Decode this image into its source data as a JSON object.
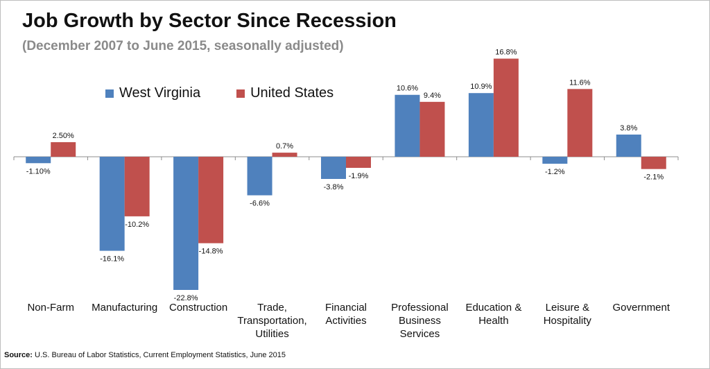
{
  "title": "Job Growth by Sector Since Recession",
  "subtitle": "(December 2007 to June 2015, seasonally adjusted)",
  "source": {
    "prefix": "Source:",
    "text": "U.S. Bureau of Labor Statistics, Current Employment Statistics, June 2015"
  },
  "colors": {
    "west_virginia": "#4f81bd",
    "united_states": "#c0504d"
  },
  "chart_data": {
    "type": "bar",
    "categories": [
      [
        "Non-Farm"
      ],
      [
        "Manufacturing"
      ],
      [
        "Construction"
      ],
      [
        "Trade,",
        "Transportation,",
        "Utilities"
      ],
      [
        "Financial",
        "Activities"
      ],
      [
        "Professional",
        "Business",
        "Services"
      ],
      [
        "Education &",
        "Health"
      ],
      [
        "Leisure &",
        "Hospitality"
      ],
      [
        "Government"
      ]
    ],
    "series": [
      {
        "name": "West Virginia",
        "values": [
          -1.1,
          -16.1,
          -22.8,
          -6.6,
          -3.8,
          10.6,
          10.9,
          -1.2,
          3.8
        ],
        "labels": [
          "-1.10%",
          "-16.1%",
          "-22.8%",
          "-6.6%",
          "-3.8%",
          "10.6%",
          "10.9%",
          "-1.2%",
          "3.8%"
        ]
      },
      {
        "name": "United States",
        "values": [
          2.5,
          -10.2,
          -14.8,
          0.7,
          -1.9,
          9.4,
          16.8,
          11.6,
          -2.1
        ],
        "labels": [
          "2.50%",
          "-10.2%",
          "-14.8%",
          "0.7%",
          "-1.9%",
          "9.4%",
          "16.8%",
          "11.6%",
          "-2.1%"
        ]
      }
    ],
    "ylim": [
      -25,
      20
    ],
    "grid": false,
    "legend_position": "top-left"
  }
}
